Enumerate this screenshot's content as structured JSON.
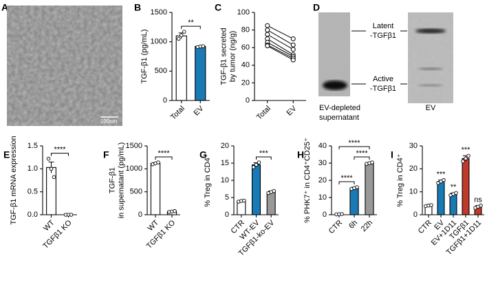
{
  "panels": {
    "A": {
      "label": "A",
      "scale_bar": "100nm"
    },
    "D": {
      "label": "D",
      "bands": [
        [
          "Latent",
          "-TGFβ1"
        ],
        [
          "Active",
          "-TGFβ1"
        ]
      ],
      "lanes": [
        [
          "EV-depleted",
          "supernatant"
        ],
        [
          "EV"
        ]
      ]
    }
  },
  "chart_data": [
    {
      "type": "bar",
      "panel": "B",
      "ylabel": [
        "TGF-β1 (pg/mL)"
      ],
      "categories": [
        "Total",
        "EV"
      ],
      "values": [
        1100,
        920
      ],
      "errors": [
        50,
        8
      ],
      "points": [
        [
          1050,
          1110,
          1170
        ],
        [
          910,
          920,
          925
        ]
      ],
      "colors": [
        "#ffffff",
        "#1a7ab5"
      ],
      "ylim": [
        0,
        1500
      ],
      "yticks": [
        0,
        500,
        1000,
        1500
      ],
      "annotations": [
        {
          "text": "**",
          "between": [
            "Total",
            "EV"
          ]
        }
      ]
    },
    {
      "type": "line",
      "panel": "C",
      "ylabel": [
        "TGF-β1 secreted",
        "by tumor (ng/g)"
      ],
      "categories": [
        "Total",
        "EV"
      ],
      "color": "#000000",
      "series": [
        {
          "values": [
            85,
            70
          ]
        },
        {
          "values": [
            80,
            63
          ]
        },
        {
          "values": [
            75,
            58
          ]
        },
        {
          "values": [
            70,
            52
          ]
        },
        {
          "values": [
            66,
            50
          ]
        },
        {
          "values": [
            63,
            48
          ]
        },
        {
          "values": [
            62,
            46
          ]
        }
      ],
      "ylim": [
        0,
        100
      ],
      "yticks": [
        0,
        20,
        40,
        60,
        80,
        100
      ]
    },
    {
      "type": "bar",
      "panel": "E",
      "ylabel": [
        "TGF-β1 mRNA expression"
      ],
      "categories": [
        "WT",
        "TGFβ1 KO"
      ],
      "values": [
        1.03,
        0.0
      ],
      "errors": [
        0.12,
        0.0
      ],
      "points": [
        [
          1.22,
          1.0,
          0.82
        ],
        [
          0,
          0,
          0
        ]
      ],
      "colors": [
        "#ffffff",
        "#ffffff"
      ],
      "ylim": [
        0,
        1.5
      ],
      "yticks": [
        {
          "value": 0,
          "label": "0.0"
        },
        0.5,
        {
          "value": 1,
          "label": "1.0"
        },
        1.5
      ],
      "annotations": [
        {
          "text": "****",
          "between": [
            "WT",
            "TGFβ1 KO"
          ]
        }
      ]
    },
    {
      "type": "bar",
      "panel": "F",
      "ylabel": [
        "TGF-β1",
        "in supernatant (pg/mL)"
      ],
      "categories": [
        "WT",
        "TGFβ1 KO"
      ],
      "values": [
        1120,
        70
      ],
      "errors": [
        15,
        6
      ],
      "points": [
        [
          1100,
          1120,
          1140
        ],
        [
          60,
          70,
          80
        ]
      ],
      "colors": [
        "#ffffff",
        "#ffffff"
      ],
      "ylim": [
        0,
        1500
      ],
      "yticks": [
        0,
        500,
        1000,
        1500
      ],
      "annotations": [
        {
          "text": "****",
          "between": [
            "WT",
            "TGFβ1 KO"
          ]
        }
      ]
    },
    {
      "type": "bar",
      "panel": "G",
      "ylabel": [
        "% Treg in CD4⁺"
      ],
      "categories": [
        "CTR",
        "WT-EV",
        "TGFβ1-ko-EV"
      ],
      "values": [
        4,
        14.5,
        6.6
      ],
      "errors": [
        0.2,
        0.6,
        0.3
      ],
      "points": [
        [
          3.8,
          4,
          4.1
        ],
        [
          13.8,
          14.5,
          15.2
        ],
        [
          6.3,
          6.6,
          6.9
        ]
      ],
      "colors": [
        "#ffffff",
        "#1a7ab5",
        "#999999"
      ],
      "ylim": [
        0,
        20
      ],
      "yticks": [
        0,
        5,
        10,
        15,
        20
      ],
      "annotations": [
        {
          "text": "***",
          "between": [
            "WT-EV",
            "TGFβ1-ko-EV"
          ]
        }
      ]
    },
    {
      "type": "bar",
      "panel": "H",
      "ylabel": [
        "% PHK7⁺ in CD4⁺CD25⁺"
      ],
      "categories": [
        "CTR",
        "6h",
        "22h"
      ],
      "values": [
        0.3,
        15.5,
        30
      ],
      "errors": [
        0.1,
        0.5,
        0.4
      ],
      "points": [
        [
          0.2,
          0.3,
          0.4
        ],
        [
          15,
          15.5,
          16
        ],
        [
          29.6,
          30,
          30.4
        ]
      ],
      "colors": [
        "#ffffff",
        "#1a7ab5",
        "#999999"
      ],
      "ylim": [
        0,
        40
      ],
      "yticks": [
        0,
        10,
        20,
        30,
        40
      ],
      "annotations": [
        {
          "text": "****",
          "between": [
            "CTR",
            "6h"
          ]
        },
        {
          "text": "****",
          "between": [
            "6h",
            "22h"
          ]
        },
        {
          "text": "****",
          "between": [
            "CTR",
            "22h"
          ]
        }
      ]
    },
    {
      "type": "bar",
      "panel": "I",
      "ylabel": [
        "% Treg in CD4⁺"
      ],
      "categories": [
        "CTR",
        "EV",
        "EV+1D11",
        "TGFβ1",
        "TGFβ1+1D11"
      ],
      "values": [
        4,
        14.5,
        9,
        24.5,
        3.5
      ],
      "errors": [
        0.2,
        0.6,
        0.5,
        1.2,
        0.5
      ],
      "points": [
        [
          3.8,
          4,
          4.2
        ],
        [
          13.8,
          14.5,
          15.1
        ],
        [
          8.5,
          9,
          9.5
        ],
        [
          23.3,
          24.5,
          25.7
        ],
        [
          3,
          3.5,
          4
        ]
      ],
      "colors": [
        "#ffffff",
        "#1a7ab5",
        "#1a7ab5",
        "#c0392b",
        "#c0392b"
      ],
      "ylim": [
        0,
        30
      ],
      "yticks": [
        0,
        10,
        20,
        30
      ],
      "annotations": [
        {
          "text": "***",
          "above": "EV"
        },
        {
          "text": "**",
          "above": "EV+1D11"
        },
        {
          "text": "***",
          "above": "TGFβ1"
        },
        {
          "text": "ns",
          "above": "TGFβ1+1D11"
        }
      ]
    }
  ]
}
